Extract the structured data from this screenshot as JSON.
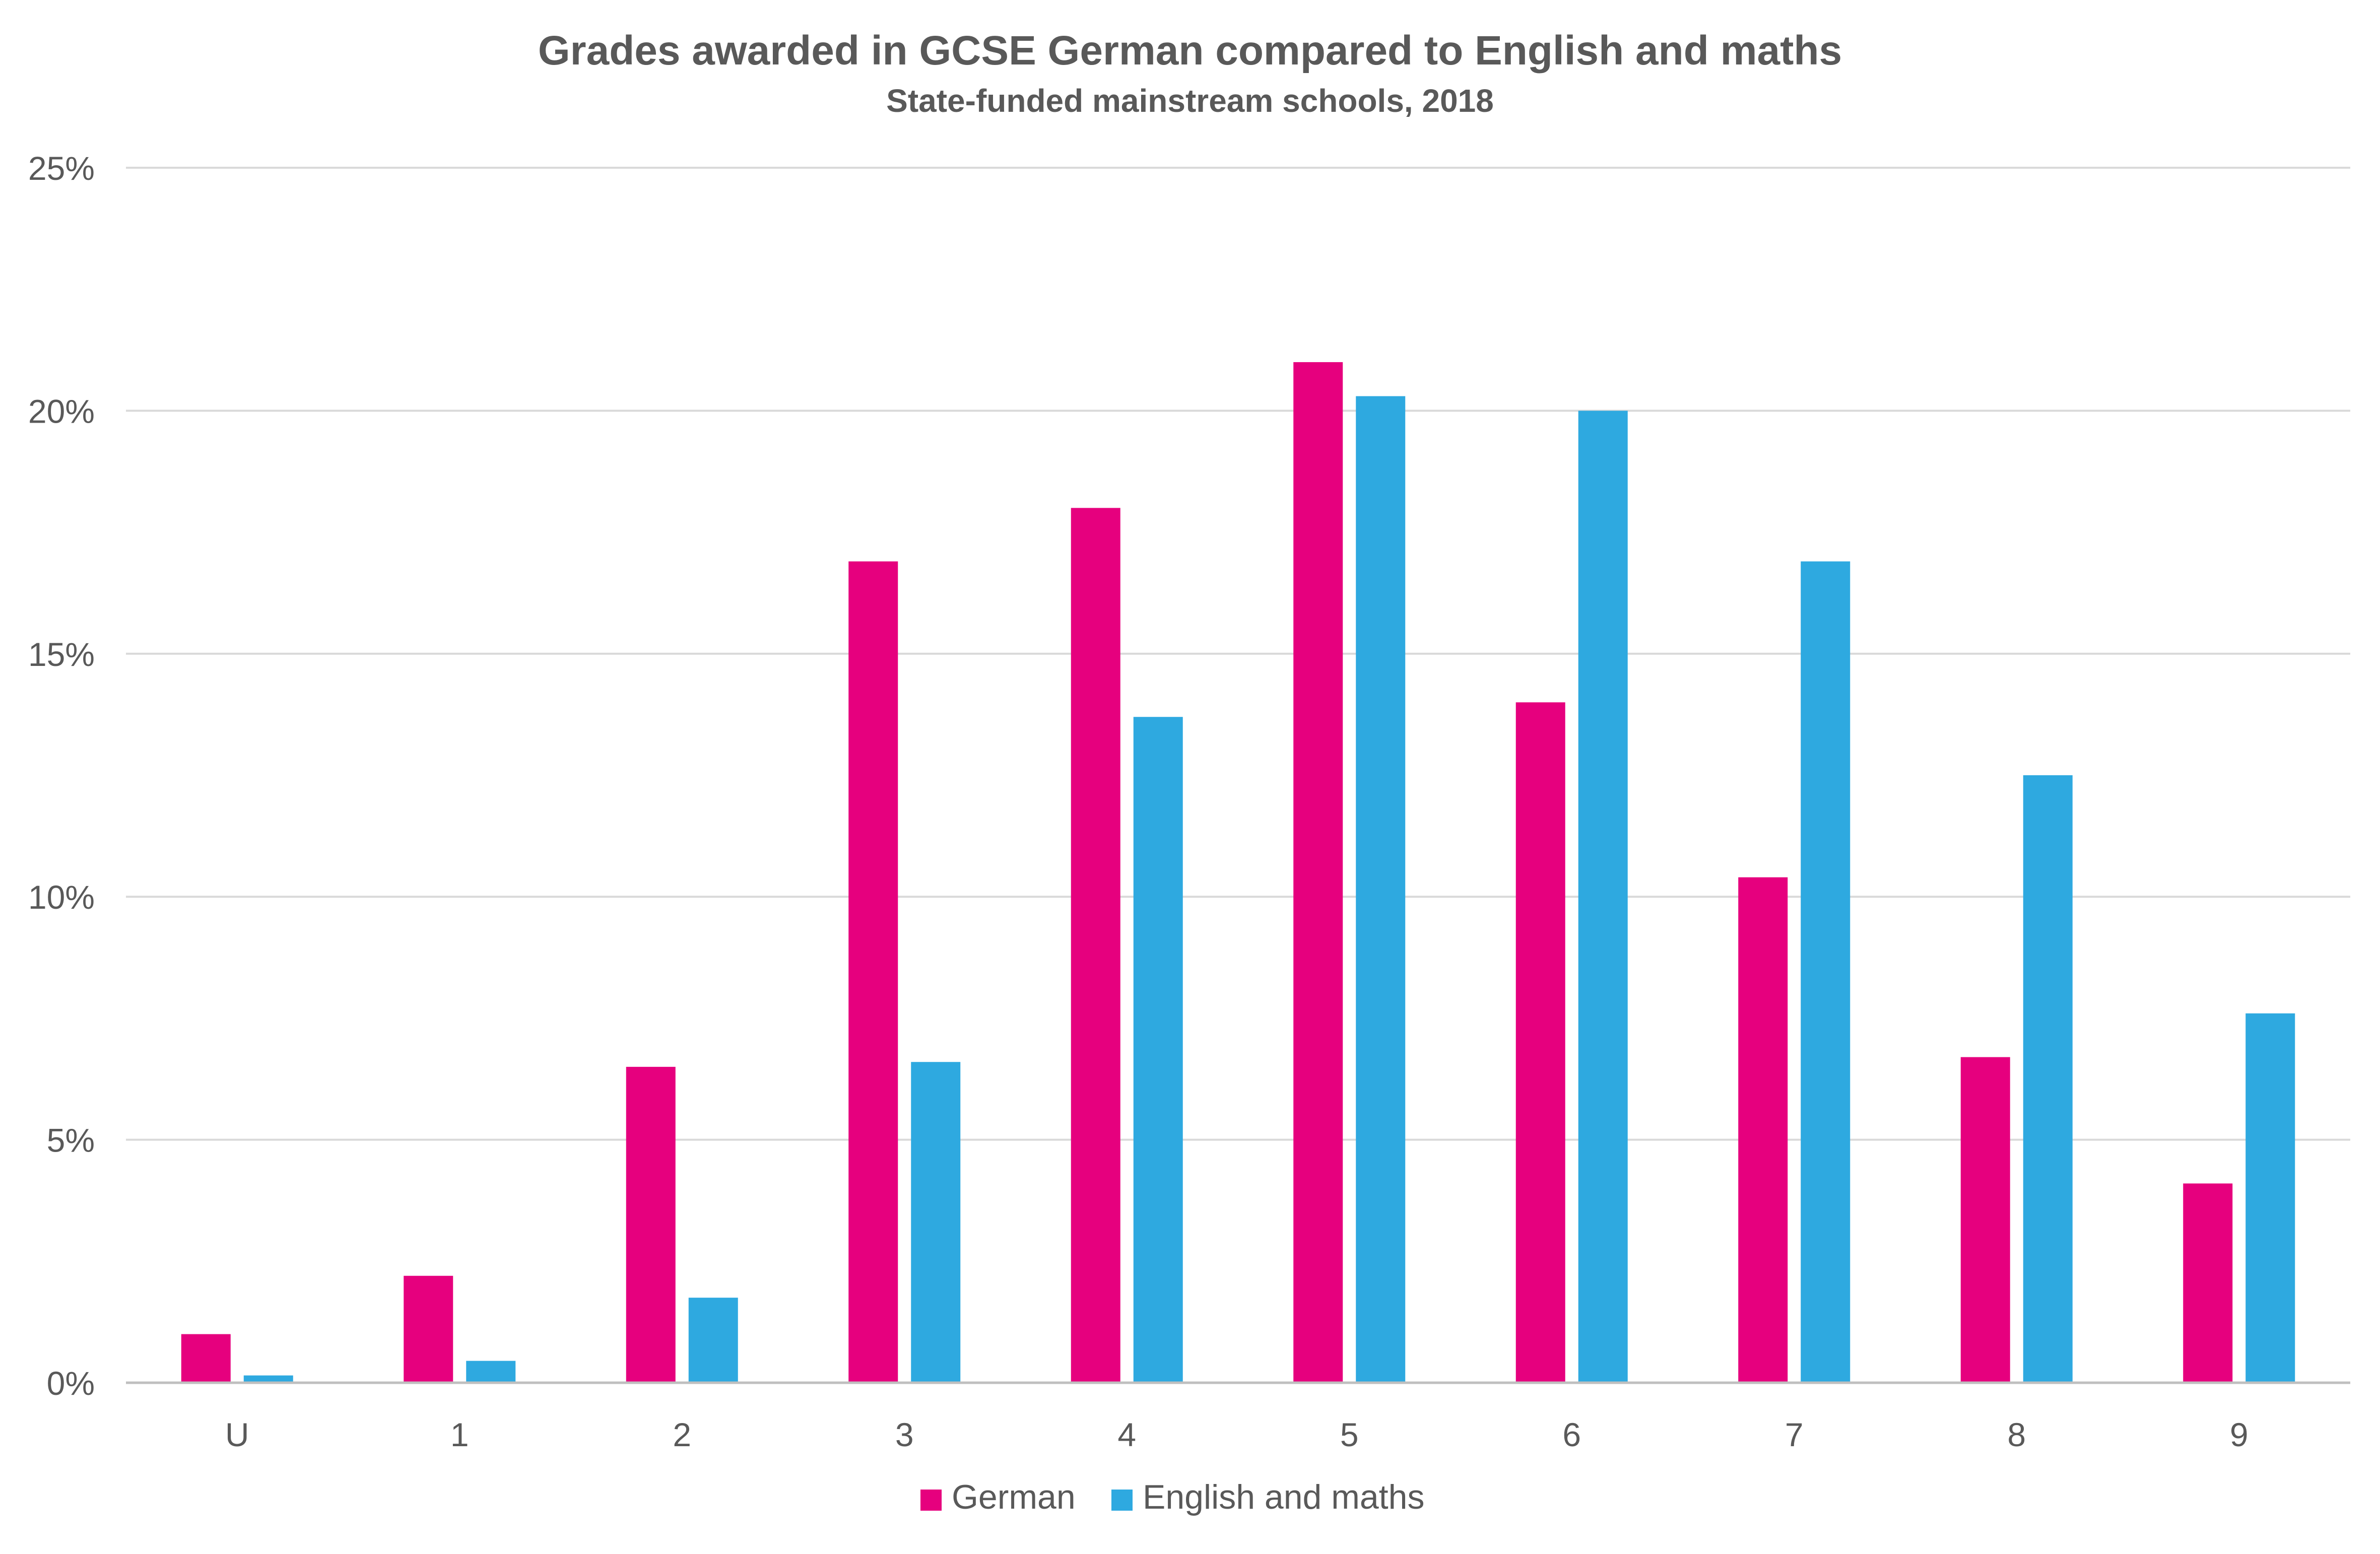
{
  "chart_data": {
    "type": "bar",
    "title": "Grades awarded in GCSE German compared to English and maths",
    "subtitle": "State-funded  mainstream schools, 2018",
    "xlabel": "",
    "ylabel": "",
    "categories": [
      "U",
      "1",
      "2",
      "3",
      "4",
      "5",
      "6",
      "7",
      "8",
      "9"
    ],
    "series": [
      {
        "name": "German",
        "color": "#E6007E",
        "values": [
          1.0,
          2.2,
          6.5,
          16.9,
          18.0,
          21.0,
          14.0,
          10.4,
          6.7,
          4.1
        ]
      },
      {
        "name": "English and maths",
        "color": "#2EA9E0",
        "values": [
          0.15,
          0.45,
          1.75,
          6.6,
          13.7,
          20.3,
          20.0,
          16.9,
          12.5,
          7.6
        ]
      }
    ],
    "ylim": [
      0,
      25
    ],
    "yticks": [
      0,
      5,
      10,
      15,
      20,
      25
    ],
    "ytick_labels": [
      "0%",
      "5%",
      "10%",
      "15%",
      "20%",
      "25%"
    ],
    "grid": true,
    "legend_position": "bottom-center",
    "gridline_color": "#D9D9D9",
    "axis_color": "#BFBFBF",
    "text_color": "#595959"
  }
}
